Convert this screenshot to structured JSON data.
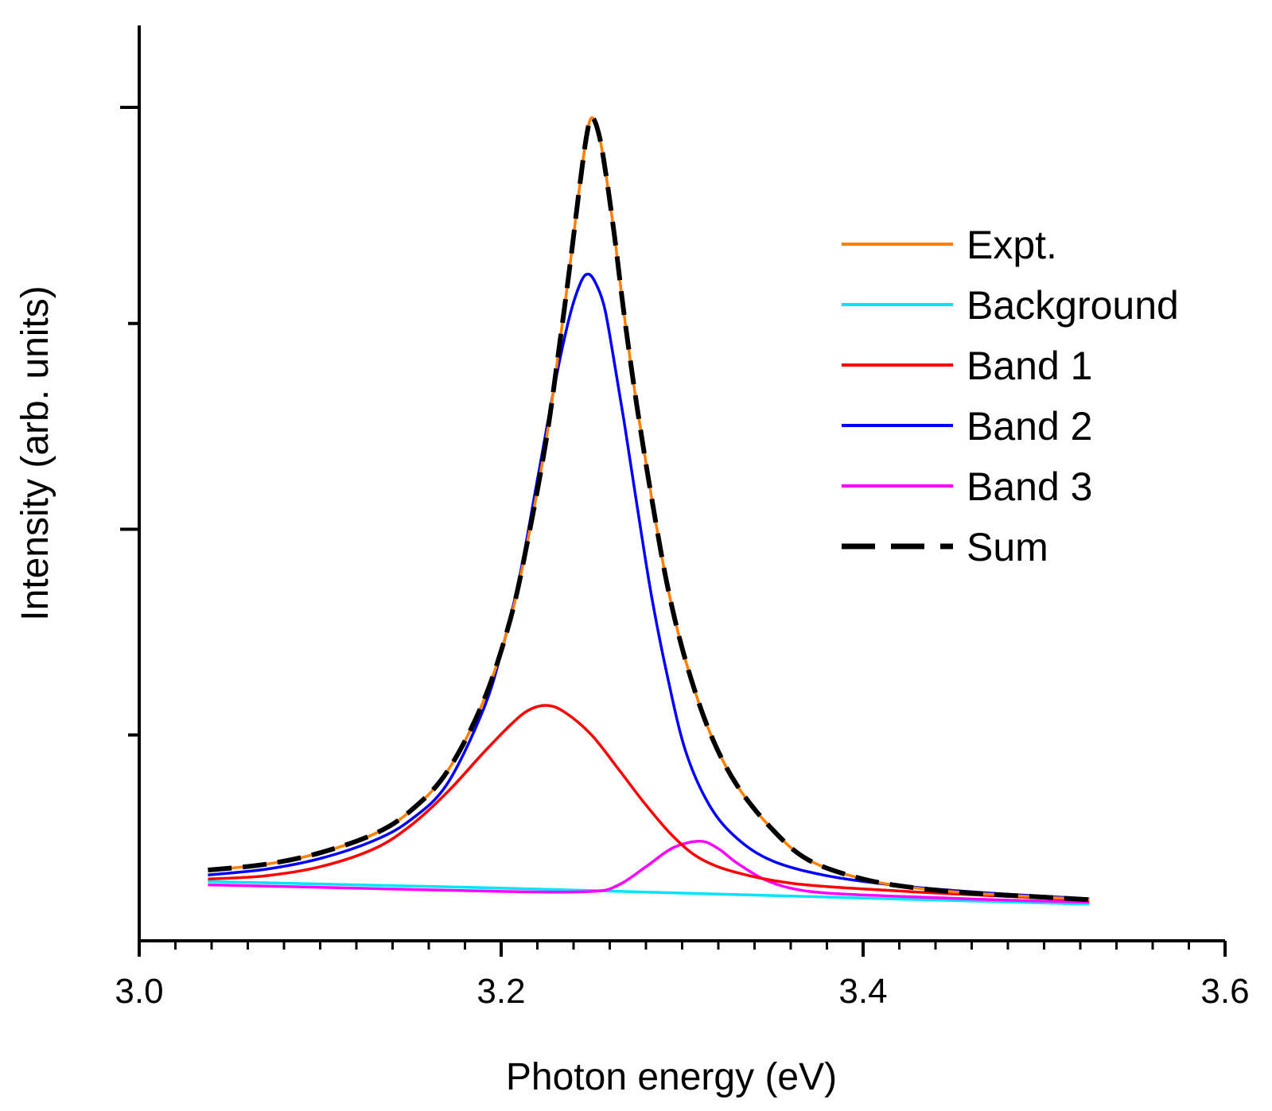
{
  "chart_data": {
    "type": "line",
    "title": "",
    "xlabel": "Photon energy (eV)",
    "ylabel": "Intensity (arb. units)",
    "xlim": [
      3.0,
      3.6
    ],
    "ylim": [
      0,
      1.0
    ],
    "x_ticks": [
      "3.0",
      "3.2",
      "3.4",
      "3.6"
    ],
    "y_ticks_labeled": false,
    "grid": false,
    "legend_position": "top-right",
    "x_range": [
      3.038,
      3.525
    ],
    "series": [
      {
        "name": "Expt.",
        "color": "#ff8000",
        "dash": "solid",
        "points": [
          [
            3.038,
            0.086
          ],
          [
            3.07,
            0.093
          ],
          [
            3.1,
            0.107
          ],
          [
            3.13,
            0.13
          ],
          [
            3.15,
            0.158
          ],
          [
            3.17,
            0.205
          ],
          [
            3.19,
            0.29
          ],
          [
            3.205,
            0.39
          ],
          [
            3.215,
            0.49
          ],
          [
            3.225,
            0.61
          ],
          [
            3.232,
            0.72
          ],
          [
            3.238,
            0.82
          ],
          [
            3.243,
            0.91
          ],
          [
            3.247,
            0.975
          ],
          [
            3.25,
            1.0
          ],
          [
            3.254,
            0.98
          ],
          [
            3.258,
            0.93
          ],
          [
            3.263,
            0.85
          ],
          [
            3.268,
            0.76
          ],
          [
            3.275,
            0.65
          ],
          [
            3.283,
            0.54
          ],
          [
            3.292,
            0.43
          ],
          [
            3.302,
            0.34
          ],
          [
            3.315,
            0.255
          ],
          [
            3.33,
            0.19
          ],
          [
            3.35,
            0.135
          ],
          [
            3.37,
            0.098
          ],
          [
            3.4,
            0.075
          ],
          [
            3.43,
            0.064
          ],
          [
            3.46,
            0.058
          ],
          [
            3.5,
            0.053
          ],
          [
            3.525,
            0.05
          ]
        ]
      },
      {
        "name": "Background",
        "color": "#00e5ff",
        "dash": "solid",
        "points": [
          [
            3.038,
            0.072
          ],
          [
            3.1,
            0.069
          ],
          [
            3.2,
            0.064
          ],
          [
            3.3,
            0.058
          ],
          [
            3.4,
            0.052
          ],
          [
            3.5,
            0.046
          ],
          [
            3.525,
            0.045
          ]
        ]
      },
      {
        "name": "Band 1",
        "color": "#ff0000",
        "dash": "solid",
        "points": [
          [
            3.038,
            0.075
          ],
          [
            3.07,
            0.079
          ],
          [
            3.1,
            0.09
          ],
          [
            3.13,
            0.112
          ],
          [
            3.15,
            0.14
          ],
          [
            3.17,
            0.18
          ],
          [
            3.19,
            0.228
          ],
          [
            3.205,
            0.262
          ],
          [
            3.215,
            0.28
          ],
          [
            3.225,
            0.286
          ],
          [
            3.235,
            0.278
          ],
          [
            3.25,
            0.25
          ],
          [
            3.265,
            0.208
          ],
          [
            3.28,
            0.165
          ],
          [
            3.295,
            0.127
          ],
          [
            3.31,
            0.1
          ],
          [
            3.33,
            0.083
          ],
          [
            3.36,
            0.07
          ],
          [
            3.4,
            0.063
          ],
          [
            3.45,
            0.057
          ],
          [
            3.5,
            0.052
          ],
          [
            3.525,
            0.049
          ]
        ]
      },
      {
        "name": "Band 2",
        "color": "#0000ff",
        "dash": "solid",
        "points": [
          [
            3.038,
            0.08
          ],
          [
            3.07,
            0.087
          ],
          [
            3.1,
            0.1
          ],
          [
            3.13,
            0.122
          ],
          [
            3.15,
            0.147
          ],
          [
            3.17,
            0.19
          ],
          [
            3.19,
            0.28
          ],
          [
            3.2,
            0.35
          ],
          [
            3.21,
            0.44
          ],
          [
            3.22,
            0.56
          ],
          [
            3.23,
            0.68
          ],
          [
            3.238,
            0.76
          ],
          [
            3.244,
            0.8
          ],
          [
            3.248,
            0.81
          ],
          [
            3.252,
            0.8
          ],
          [
            3.257,
            0.77
          ],
          [
            3.262,
            0.71
          ],
          [
            3.268,
            0.63
          ],
          [
            3.275,
            0.53
          ],
          [
            3.283,
            0.42
          ],
          [
            3.292,
            0.32
          ],
          [
            3.302,
            0.23
          ],
          [
            3.315,
            0.165
          ],
          [
            3.33,
            0.125
          ],
          [
            3.35,
            0.097
          ],
          [
            3.38,
            0.079
          ],
          [
            3.42,
            0.067
          ],
          [
            3.47,
            0.058
          ],
          [
            3.525,
            0.051
          ]
        ]
      },
      {
        "name": "Band 3",
        "color": "#ff00ff",
        "dash": "solid",
        "points": [
          [
            3.038,
            0.068
          ],
          [
            3.1,
            0.065
          ],
          [
            3.2,
            0.06
          ],
          [
            3.25,
            0.06
          ],
          [
            3.265,
            0.068
          ],
          [
            3.28,
            0.09
          ],
          [
            3.295,
            0.113
          ],
          [
            3.31,
            0.121
          ],
          [
            3.32,
            0.112
          ],
          [
            3.33,
            0.095
          ],
          [
            3.345,
            0.075
          ],
          [
            3.36,
            0.064
          ],
          [
            3.38,
            0.058
          ],
          [
            3.42,
            0.054
          ],
          [
            3.47,
            0.05
          ],
          [
            3.525,
            0.047
          ]
        ]
      },
      {
        "name": "Sum",
        "color": "#000000",
        "dash": "dashed",
        "points": [
          [
            3.038,
            0.086
          ],
          [
            3.07,
            0.093
          ],
          [
            3.1,
            0.107
          ],
          [
            3.13,
            0.13
          ],
          [
            3.15,
            0.158
          ],
          [
            3.17,
            0.205
          ],
          [
            3.19,
            0.29
          ],
          [
            3.205,
            0.39
          ],
          [
            3.215,
            0.49
          ],
          [
            3.225,
            0.61
          ],
          [
            3.232,
            0.72
          ],
          [
            3.238,
            0.82
          ],
          [
            3.243,
            0.91
          ],
          [
            3.247,
            0.975
          ],
          [
            3.25,
            1.0
          ],
          [
            3.254,
            0.98
          ],
          [
            3.258,
            0.93
          ],
          [
            3.263,
            0.85
          ],
          [
            3.268,
            0.76
          ],
          [
            3.275,
            0.65
          ],
          [
            3.283,
            0.54
          ],
          [
            3.292,
            0.43
          ],
          [
            3.302,
            0.34
          ],
          [
            3.315,
            0.255
          ],
          [
            3.33,
            0.19
          ],
          [
            3.35,
            0.135
          ],
          [
            3.37,
            0.098
          ],
          [
            3.4,
            0.075
          ],
          [
            3.43,
            0.064
          ],
          [
            3.46,
            0.058
          ],
          [
            3.5,
            0.053
          ],
          [
            3.525,
            0.05
          ]
        ]
      }
    ]
  }
}
